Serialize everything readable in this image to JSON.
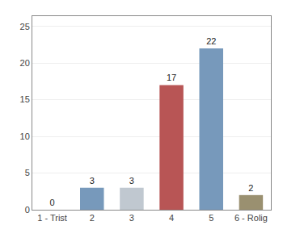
{
  "chart_data": {
    "type": "bar",
    "categories": [
      "1 - Trist",
      "2",
      "3",
      "4",
      "5",
      "6 - Rolig"
    ],
    "values": [
      0,
      3,
      3,
      17,
      22,
      2
    ],
    "colors": [
      "#7799bb",
      "#7799bb",
      "#c0c8d0",
      "#b85555",
      "#7799bb",
      "#9a9070"
    ],
    "ylim": [
      0,
      26.4
    ],
    "yticks": [
      0,
      5,
      10,
      15,
      20,
      25
    ],
    "grid": true,
    "data_labels": true
  }
}
